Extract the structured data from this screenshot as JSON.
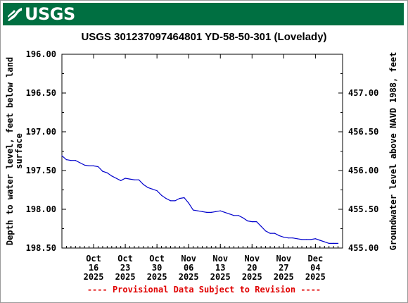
{
  "header": {
    "logo_text": "USGS",
    "logo_icon": "usgs-wave-icon",
    "brand_color": "#006f41"
  },
  "chart_data": {
    "type": "line",
    "title": "USGS 301237097464801 YD-58-50-301 (Lovelady)",
    "ylabel_left": "Depth to water level, feet below land surface",
    "ylabel_right": "Groundwater level above NAVD 1988, feet",
    "ylim_left": [
      196.0,
      198.5
    ],
    "y_inverted": true,
    "ylim_right": [
      455.0,
      457.5
    ],
    "yticks_left": [
      "196.00",
      "196.50",
      "197.00",
      "197.50",
      "198.00",
      "198.50"
    ],
    "yticks_right": [
      "455.00",
      "455.50",
      "456.00",
      "456.50",
      "457.00"
    ],
    "xlim": [
      "2025-10-09",
      "2025-12-10"
    ],
    "xticks": [
      {
        "date": "2025-10-16",
        "label": [
          "Oct",
          "16",
          "2025"
        ]
      },
      {
        "date": "2025-10-23",
        "label": [
          "Oct",
          "23",
          "2025"
        ]
      },
      {
        "date": "2025-10-30",
        "label": [
          "Oct",
          "30",
          "2025"
        ]
      },
      {
        "date": "2025-11-06",
        "label": [
          "Nov",
          "06",
          "2025"
        ]
      },
      {
        "date": "2025-11-13",
        "label": [
          "Nov",
          "13",
          "2025"
        ]
      },
      {
        "date": "2025-11-20",
        "label": [
          "Nov",
          "20",
          "2025"
        ]
      },
      {
        "date": "2025-11-27",
        "label": [
          "Nov",
          "27",
          "2025"
        ]
      },
      {
        "date": "2025-12-04",
        "label": [
          "Dec",
          "04",
          "2025"
        ]
      }
    ],
    "grid": false,
    "line_color": "#0000cc",
    "series": [
      {
        "x": [
          "2025-10-09",
          "2025-10-10",
          "2025-10-11",
          "2025-10-12",
          "2025-10-13",
          "2025-10-14",
          "2025-10-15",
          "2025-10-16",
          "2025-10-17",
          "2025-10-18",
          "2025-10-19",
          "2025-10-20",
          "2025-10-21",
          "2025-10-22",
          "2025-10-23",
          "2025-10-24",
          "2025-10-25",
          "2025-10-26",
          "2025-10-27",
          "2025-10-28",
          "2025-10-29",
          "2025-10-30",
          "2025-10-31",
          "2025-11-01",
          "2025-11-02",
          "2025-11-03",
          "2025-11-04",
          "2025-11-05",
          "2025-11-06",
          "2025-11-07",
          "2025-11-08",
          "2025-11-09",
          "2025-11-10",
          "2025-11-11",
          "2025-11-12",
          "2025-11-13",
          "2025-11-14",
          "2025-11-15",
          "2025-11-16",
          "2025-11-17",
          "2025-11-18",
          "2025-11-19",
          "2025-11-20",
          "2025-11-21",
          "2025-11-22",
          "2025-11-23",
          "2025-11-24",
          "2025-11-25",
          "2025-11-26",
          "2025-11-27",
          "2025-11-28",
          "2025-11-29",
          "2025-11-30",
          "2025-12-01",
          "2025-12-02",
          "2025-12-03",
          "2025-12-04",
          "2025-12-05",
          "2025-12-06",
          "2025-12-07",
          "2025-12-08",
          "2025-12-09"
        ],
        "y": [
          197.31,
          197.36,
          197.37,
          197.37,
          197.4,
          197.43,
          197.44,
          197.44,
          197.45,
          197.51,
          197.53,
          197.57,
          197.6,
          197.63,
          197.6,
          197.61,
          197.62,
          197.62,
          197.68,
          197.72,
          197.74,
          197.76,
          197.82,
          197.86,
          197.89,
          197.89,
          197.86,
          197.85,
          197.92,
          198.01,
          198.02,
          198.03,
          198.04,
          198.04,
          198.03,
          198.02,
          198.04,
          198.06,
          198.08,
          198.08,
          198.11,
          198.15,
          198.16,
          198.16,
          198.22,
          198.28,
          198.31,
          198.31,
          198.34,
          198.36,
          198.37,
          198.37,
          198.38,
          198.39,
          198.39,
          198.39,
          198.38,
          198.4,
          198.42,
          198.44,
          198.44,
          198.44
        ]
      }
    ]
  },
  "footer": {
    "provisional_text": "---- Provisional Data Subject to Revision ----"
  }
}
